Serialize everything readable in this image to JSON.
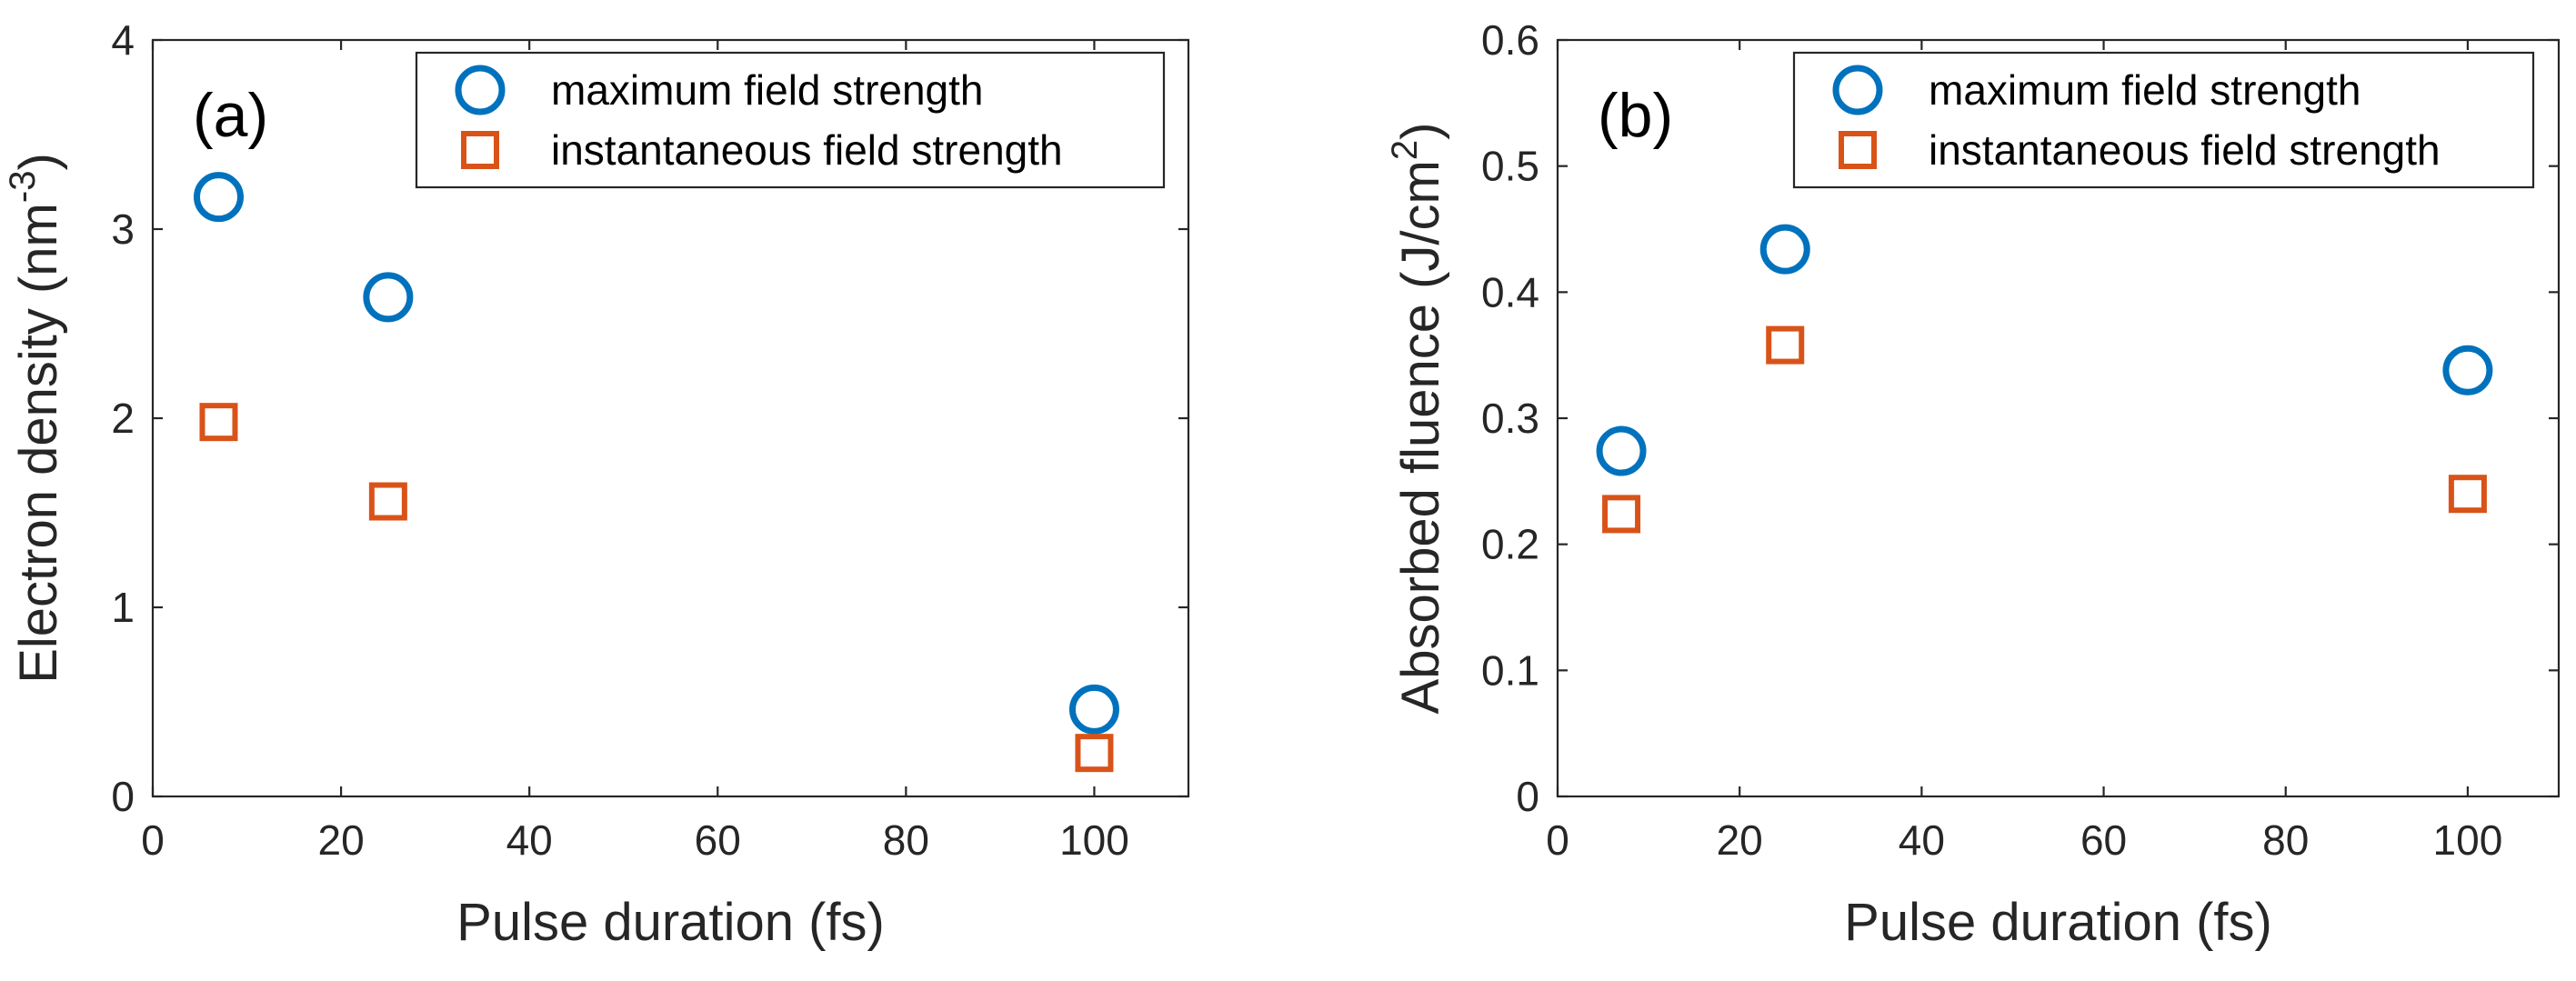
{
  "chart_data": [
    {
      "type": "scatter",
      "panel_label": "(a)",
      "xlabel": "Pulse duration (fs)",
      "ylabel": {
        "text": "Electron density (nm",
        "superscript": "-3",
        "closing": ")"
      },
      "xlim": [
        0,
        110
      ],
      "ylim": [
        0,
        4
      ],
      "xticks": [
        0,
        20,
        40,
        60,
        80,
        100
      ],
      "xtick_labels": [
        "0",
        "20",
        "40",
        "60",
        "80",
        "100"
      ],
      "yticks": [
        0,
        1,
        2,
        3,
        4
      ],
      "ytick_labels": [
        "0",
        "1",
        "2",
        "3",
        "4"
      ],
      "legend_position": "top-right",
      "series": [
        {
          "name": "maximum field strength",
          "marker": "circle",
          "color": "#0072BD",
          "x": [
            7,
            25,
            100
          ],
          "y": [
            3.17,
            2.64,
            0.46
          ]
        },
        {
          "name": "instantaneous field strength",
          "marker": "square",
          "color": "#D95319",
          "x": [
            7,
            25,
            100
          ],
          "y": [
            1.98,
            1.56,
            0.23
          ]
        }
      ]
    },
    {
      "type": "scatter",
      "panel_label": "(b)",
      "xlabel": "Pulse duration (fs)",
      "ylabel": {
        "text": "Absorbed fluence (J/cm",
        "superscript": "2",
        "closing": ")"
      },
      "xlim": [
        0,
        110
      ],
      "ylim": [
        0,
        0.6
      ],
      "xticks": [
        0,
        20,
        40,
        60,
        80,
        100
      ],
      "xtick_labels": [
        "0",
        "20",
        "40",
        "60",
        "80",
        "100"
      ],
      "yticks": [
        0,
        0.1,
        0.2,
        0.3,
        0.4,
        0.5,
        0.6
      ],
      "ytick_labels": [
        "0",
        "0.1",
        "0.2",
        "0.3",
        "0.4",
        "0.5",
        "0.6"
      ],
      "legend_position": "top-right",
      "series": [
        {
          "name": "maximum field strength",
          "marker": "circle",
          "color": "#0072BD",
          "x": [
            7,
            25,
            100
          ],
          "y": [
            0.274,
            0.434,
            0.338
          ]
        },
        {
          "name": "instantaneous field strength",
          "marker": "square",
          "color": "#D95319",
          "x": [
            7,
            25,
            100
          ],
          "y": [
            0.224,
            0.358,
            0.24
          ]
        }
      ]
    }
  ]
}
